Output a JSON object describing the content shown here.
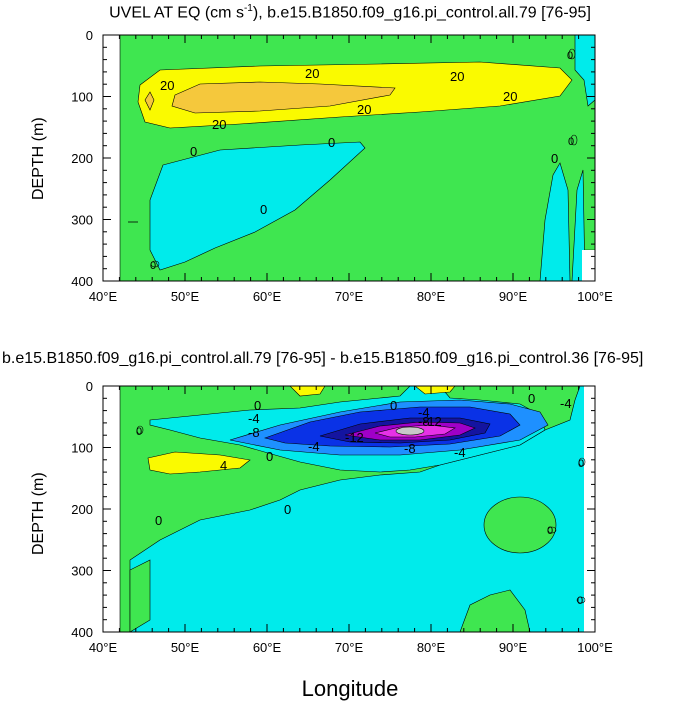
{
  "panel1": {
    "title": "UVEL AT EQ (cm s",
    "title_sup": "-1",
    "title_tail": "), b.e15.B1850.f09_g16.pi_control.all.79 [76-95]",
    "ylabel": "DEPTH (m)",
    "contour_labels": [
      "20",
      "20",
      "20",
      "20",
      "20",
      "20",
      "0",
      "0",
      "0",
      "0",
      "0",
      "0",
      "0"
    ]
  },
  "panel2": {
    "title": "b.e15.B1850.f09_g16.pi_control.all.79 [76-95] - b.e15.B1850.f09_g16.pi_control.36 [76-95]",
    "ylabel": "DEPTH (m)",
    "contour_labels": [
      "0",
      "0",
      "0",
      "-4",
      "-4",
      "-4",
      "-4",
      "-4",
      "-8",
      "-8",
      "-8",
      "-12",
      "-12",
      "4",
      "0",
      "0",
      "0",
      "0",
      "0",
      "0",
      "0"
    ]
  },
  "xlabel": "Longitude",
  "colors": {
    "green": "#3fe650",
    "cyan": "#00ebeb",
    "yellow": "#fafa00",
    "orange": "#f5c83c",
    "blue_light": "#1e90ff",
    "blue": "#0a32e6",
    "navy": "#1414a0",
    "purple": "#a000c8",
    "magenta": "#e632e6",
    "grey": "#c8c8c8"
  },
  "chart_data": [
    {
      "type": "contour",
      "title": "UVEL AT EQ (cm s-1), b.e15.B1850.f09_g16.pi_control.all.79 [76-95]",
      "xlabel": "",
      "ylabel": "DEPTH (m)",
      "xlim": [
        40,
        100
      ],
      "ylim": [
        400,
        0
      ],
      "x_ticks": [
        "40°E",
        "50°E",
        "60°E",
        "70°E",
        "80°E",
        "90°E",
        "100°E"
      ],
      "y_ticks": [
        "0",
        "100",
        "200",
        "300",
        "400"
      ],
      "contour_levels": [
        -10,
        0,
        10,
        20,
        30
      ]
    },
    {
      "type": "contour",
      "title": "b.e15.B1850.f09_g16.pi_control.all.79 [76-95] - b.e15.B1850.f09_g16.pi_control.36 [76-95]",
      "xlabel": "Longitude",
      "ylabel": "DEPTH (m)",
      "xlim": [
        40,
        100
      ],
      "ylim": [
        400,
        0
      ],
      "x_ticks": [
        "40°E",
        "50°E",
        "60°E",
        "70°E",
        "80°E",
        "90°E",
        "100°E"
      ],
      "y_ticks": [
        "0",
        "100",
        "200",
        "300",
        "400"
      ],
      "contour_levels": [
        -16,
        -12,
        -8,
        -4,
        0,
        4
      ]
    }
  ]
}
